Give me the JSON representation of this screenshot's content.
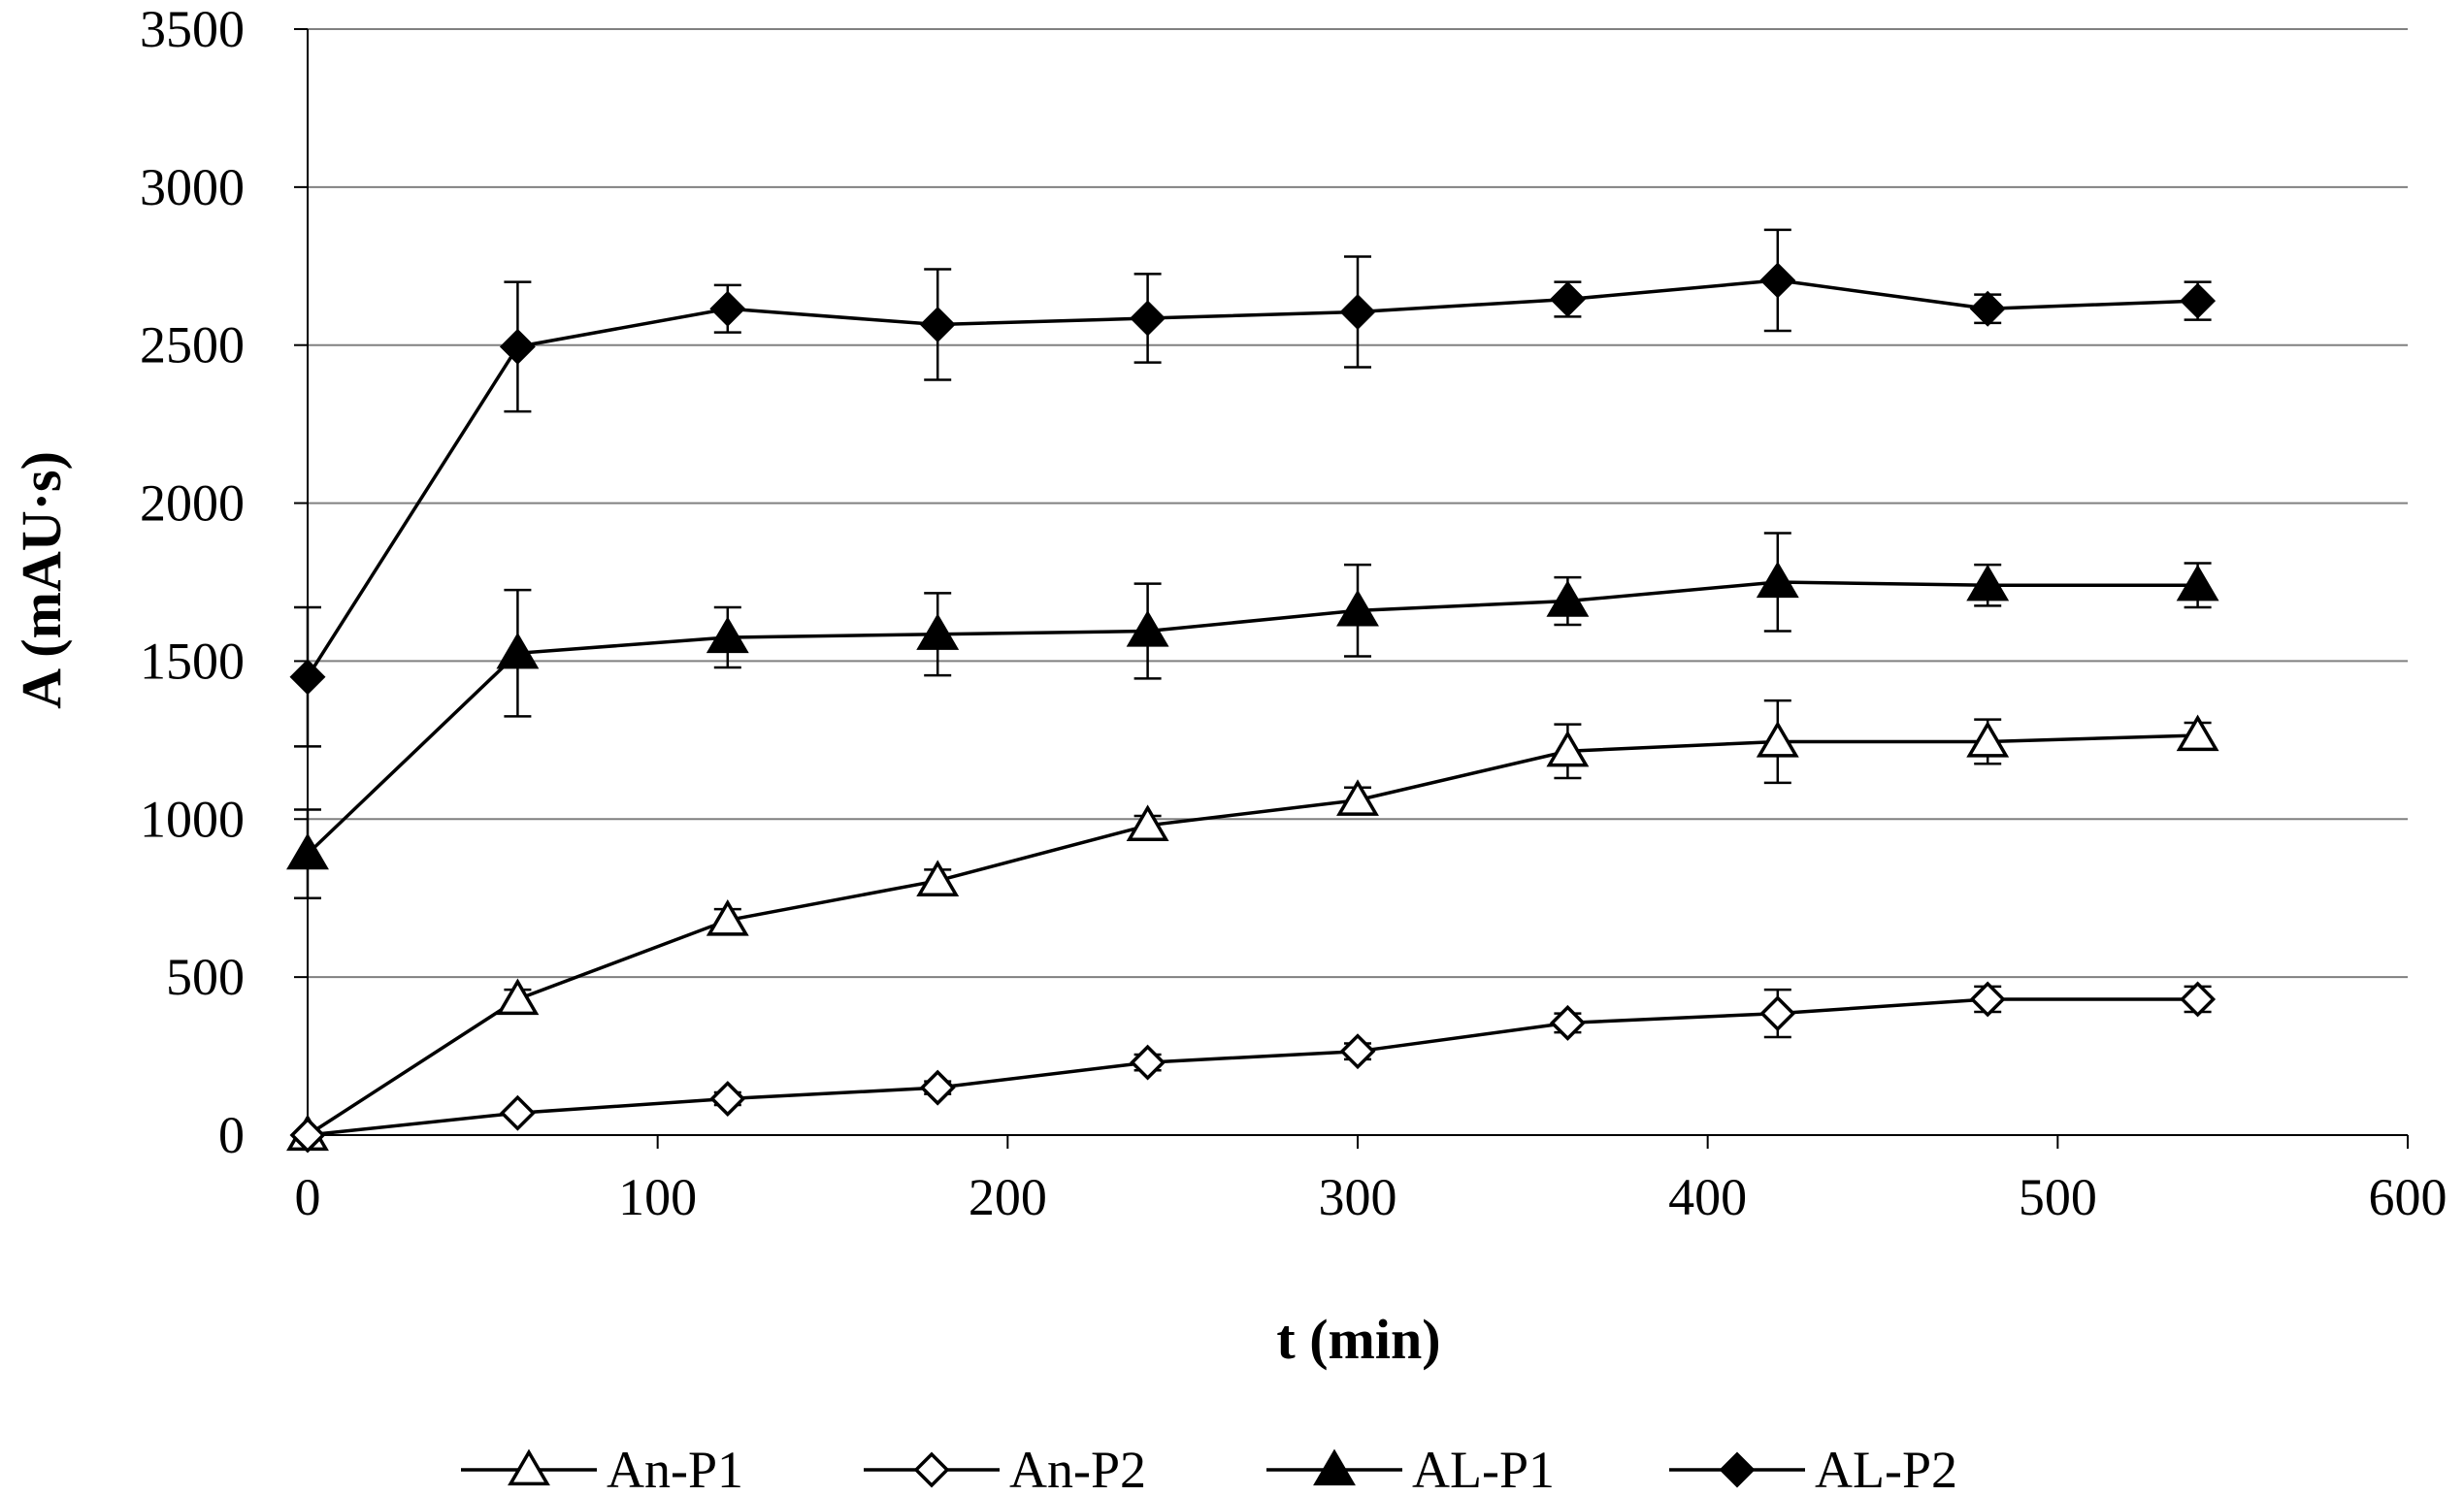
{
  "chart_data": {
    "type": "line",
    "title": "",
    "xlabel": "t (min)",
    "ylabel": "A (mAU·s)",
    "xlim": [
      0,
      600
    ],
    "ylim": [
      0,
      3500
    ],
    "xticks": [
      0,
      100,
      200,
      300,
      400,
      500,
      600
    ],
    "yticks": [
      0,
      500,
      1000,
      1500,
      2000,
      2500,
      3000,
      3500
    ],
    "grid": "horizontal",
    "legend_position": "bottom",
    "x": [
      0,
      60,
      120,
      180,
      240,
      300,
      360,
      420,
      480,
      540
    ],
    "series": [
      {
        "name": "An-P1",
        "marker": "triangle-open",
        "values": [
          0,
          430,
          680,
          805,
          980,
          1060,
          1215,
          1245,
          1245,
          1265
        ],
        "errors": [
          0,
          30,
          35,
          35,
          30,
          40,
          85,
          130,
          70,
          40
        ]
      },
      {
        "name": "An-P2",
        "marker": "diamond-open",
        "values": [
          0,
          70,
          115,
          150,
          230,
          265,
          355,
          385,
          430,
          430
        ],
        "errors": [
          0,
          0,
          20,
          20,
          25,
          25,
          30,
          75,
          40,
          40
        ]
      },
      {
        "name": "AL-P1",
        "marker": "triangle-filled",
        "values": [
          890,
          1525,
          1575,
          1585,
          1595,
          1660,
          1690,
          1750,
          1740,
          1740
        ],
        "errors": [
          140,
          200,
          95,
          130,
          150,
          145,
          75,
          155,
          65,
          70
        ]
      },
      {
        "name": "AL-P2",
        "marker": "diamond-filled",
        "values": [
          1450,
          2495,
          2615,
          2565,
          2585,
          2605,
          2645,
          2705,
          2615,
          2640
        ],
        "errors": [
          220,
          205,
          75,
          175,
          140,
          175,
          55,
          160,
          45,
          60
        ]
      }
    ]
  }
}
